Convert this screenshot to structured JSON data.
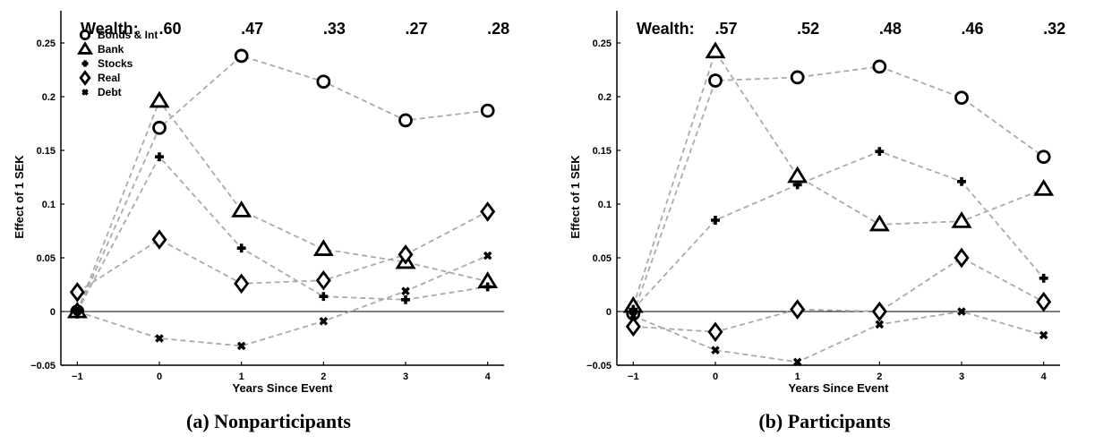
{
  "chart_data": [
    {
      "type": "line",
      "caption": "(a) Nonparticipants",
      "xlabel": "Years Since Event",
      "ylabel": "Effect of 1 SEK",
      "x": [
        -1,
        0,
        1,
        2,
        3,
        4
      ],
      "xlim": [
        -1.2,
        4.2
      ],
      "ylim": [
        -0.05,
        0.28
      ],
      "yticks": [
        -0.05,
        0,
        0.05,
        0.1,
        0.15,
        0.2,
        0.25
      ],
      "ytick_labels": [
        "−0.05",
        "0",
        "0.05",
        "0.1",
        "0.15",
        "0.2",
        "0.25"
      ],
      "xtick_labels": [
        "−1",
        "0",
        "1",
        "2",
        "3",
        "4"
      ],
      "wealth_label": "Wealth:",
      "wealth_values": [
        ".60",
        ".47",
        ".33",
        ".27",
        ".28"
      ],
      "legend_position": "top-left",
      "series": [
        {
          "name": "Bonds & Int",
          "marker": "circle",
          "values": [
            0.0,
            0.171,
            0.238,
            0.214,
            0.178,
            0.187
          ]
        },
        {
          "name": "Bank",
          "marker": "triangle",
          "values": [
            0.0,
            0.196,
            0.094,
            0.058,
            0.046,
            0.028
          ]
        },
        {
          "name": "Stocks",
          "marker": "plus",
          "values": [
            0.0,
            0.144,
            0.059,
            0.014,
            0.011,
            0.023
          ]
        },
        {
          "name": "Real",
          "marker": "diamond",
          "values": [
            0.018,
            0.067,
            0.026,
            0.029,
            0.053,
            0.093
          ]
        },
        {
          "name": "Debt",
          "marker": "x",
          "values": [
            0.0,
            -0.025,
            -0.032,
            -0.009,
            0.019,
            0.052
          ]
        }
      ]
    },
    {
      "type": "line",
      "caption": "(b) Participants",
      "xlabel": "Years Since Event",
      "ylabel": "Effect of 1 SEK",
      "x": [
        -1,
        0,
        1,
        2,
        3,
        4
      ],
      "xlim": [
        -1.2,
        4.2
      ],
      "ylim": [
        -0.05,
        0.28
      ],
      "yticks": [
        -0.05,
        0,
        0.05,
        0.1,
        0.15,
        0.2,
        0.25
      ],
      "ytick_labels": [
        "−0.05",
        "0",
        "0.05",
        "0.1",
        "0.15",
        "0.2",
        "0.25"
      ],
      "xtick_labels": [
        "−1",
        "0",
        "1",
        "2",
        "3",
        "4"
      ],
      "wealth_label": "Wealth:",
      "wealth_values": [
        ".57",
        ".52",
        ".48",
        ".46",
        ".32"
      ],
      "series": [
        {
          "name": "Bonds & Int",
          "marker": "circle",
          "values": [
            -0.002,
            0.215,
            0.218,
            0.228,
            0.199,
            0.144
          ]
        },
        {
          "name": "Bank",
          "marker": "triangle",
          "values": [
            0.005,
            0.242,
            0.126,
            0.081,
            0.084,
            0.114
          ]
        },
        {
          "name": "Stocks",
          "marker": "plus",
          "values": [
            0.002,
            0.085,
            0.118,
            0.149,
            0.121,
            0.031
          ]
        },
        {
          "name": "Real",
          "marker": "diamond",
          "values": [
            -0.014,
            -0.019,
            0.002,
            0.0,
            0.05,
            0.009
          ]
        },
        {
          "name": "Debt",
          "marker": "x",
          "values": [
            -0.004,
            -0.036,
            -0.047,
            -0.012,
            0.0,
            -0.022
          ]
        }
      ]
    }
  ]
}
